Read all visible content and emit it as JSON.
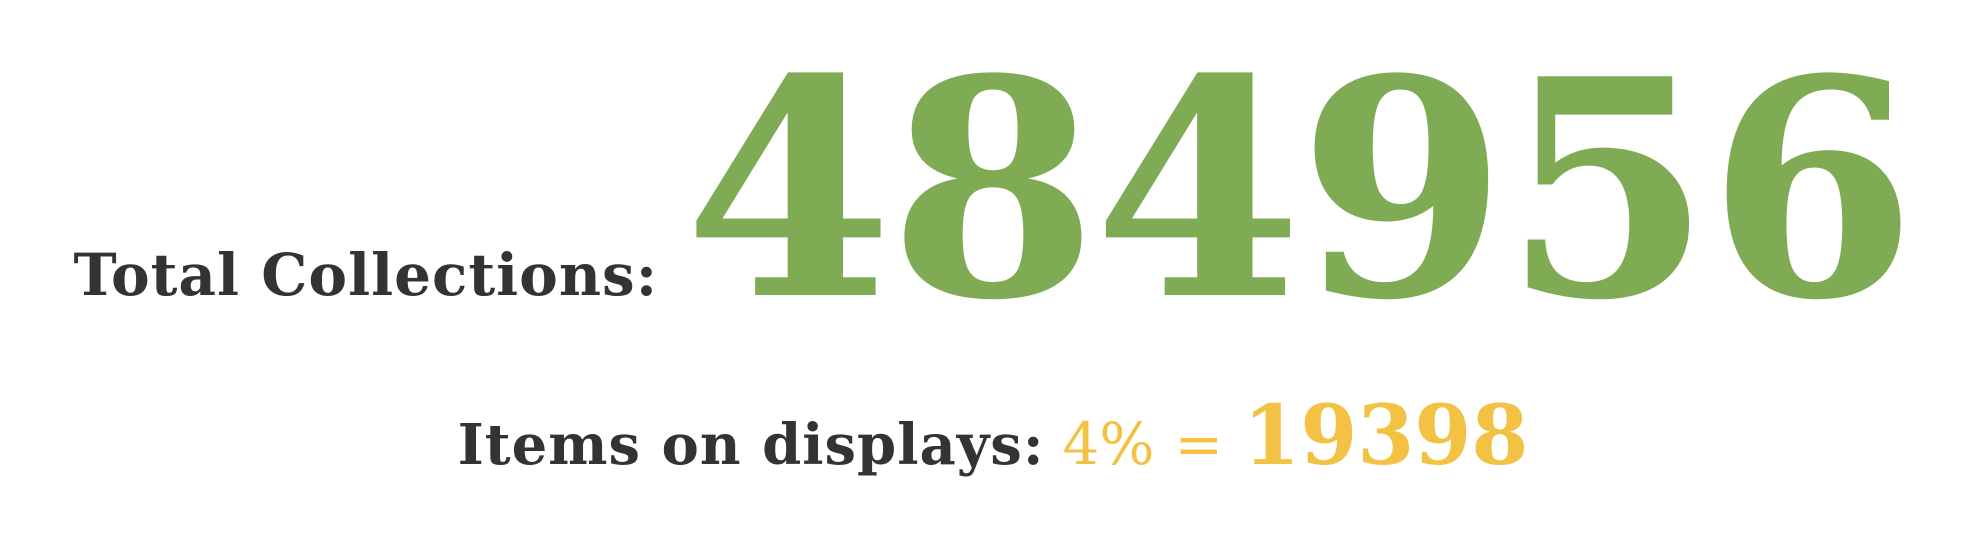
{
  "colors": {
    "label": "#333333",
    "total_value": "#80ab55",
    "display_value": "#f3c244"
  },
  "total": {
    "label": "Total Collections:",
    "value": "484956"
  },
  "display": {
    "label": "Items on displays:",
    "percent": "4%",
    "equals": "=",
    "value": "19398"
  }
}
